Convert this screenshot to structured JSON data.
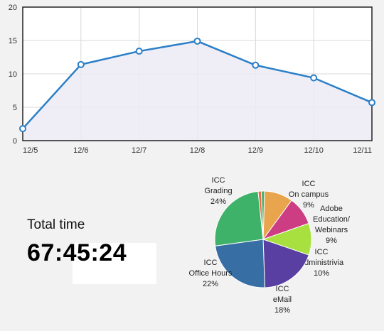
{
  "total": {
    "label": "Total time",
    "value": "67:45:24"
  },
  "colors": {
    "line": "#2a7fc7",
    "fill": "#ecebf6",
    "grid": "#d8d8d8"
  },
  "chart_data": [
    {
      "type": "area",
      "categories": [
        "12/5",
        "12/6",
        "12/7",
        "12/8",
        "12/9",
        "12/10",
        "12/11"
      ],
      "values": [
        1.8,
        11.4,
        13.4,
        14.9,
        11.3,
        9.4,
        5.7
      ],
      "ylim": [
        0,
        20
      ],
      "yticks": [
        0,
        5,
        10,
        15,
        20
      ],
      "grid": true
    },
    {
      "type": "pie",
      "slices": [
        {
          "label": [
            "ICC",
            "On campus",
            "9%"
          ],
          "value": 9,
          "color": "#e8a54e"
        },
        {
          "label": [
            "Adobe",
            "Education/",
            "Webinars",
            "9%"
          ],
          "value": 9,
          "color": "#cc3d84"
        },
        {
          "label": [
            "ICC",
            "Administrivia",
            "10%"
          ],
          "value": 10,
          "color": "#a8e040"
        },
        {
          "label": [
            "ICC",
            "eMail",
            "18%"
          ],
          "value": 18,
          "color": "#5a3fa3"
        },
        {
          "label": [
            "ICC",
            "Office Hours",
            "22%"
          ],
          "value": 22,
          "color": "#376fa5"
        },
        {
          "label": [
            "ICC",
            "Grading",
            "24%"
          ],
          "value": 24,
          "color": "#3fb26a"
        },
        {
          "label": [],
          "value": 1,
          "color": "#ef6848"
        },
        {
          "label": [],
          "value": 1,
          "color": "#3cb36b"
        }
      ]
    }
  ]
}
